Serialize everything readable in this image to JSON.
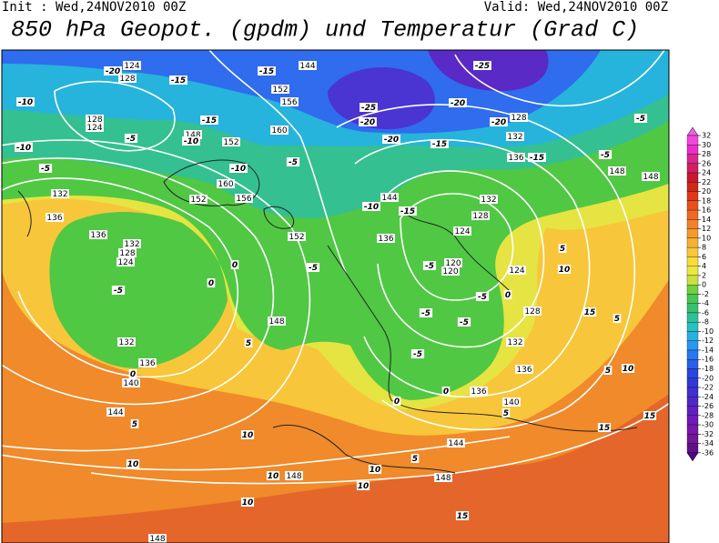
{
  "header": {
    "init": "Init : Wed,24NOV2010 00Z",
    "valid": "Valid: Wed,24NOV2010 00Z",
    "title": "850 hPa Geopot. (gpdm) und Temperatur (Grad C)"
  },
  "map": {
    "geopotential_labels": [
      144,
      152,
      156,
      128,
      124,
      148,
      152,
      160,
      160,
      152,
      156,
      132,
      136,
      136,
      132,
      128,
      124,
      152,
      148,
      136,
      132,
      140,
      144,
      144,
      136,
      132,
      128,
      124,
      120,
      120,
      124,
      128,
      132,
      136,
      140,
      136,
      144,
      148,
      148,
      148,
      148,
      128,
      132,
      136,
      148,
      124,
      128
    ],
    "temperature_labels": [
      -20,
      -15,
      -15,
      -10,
      -25,
      -25,
      -20,
      -20,
      -20,
      -20,
      -15,
      -15,
      -5,
      -5,
      -10,
      -5,
      -5,
      -10,
      -15,
      -10,
      -5,
      -10,
      -15,
      -5,
      0,
      0,
      -5,
      -5,
      -5,
      -5,
      -5,
      -5,
      0,
      5,
      10,
      15,
      5,
      5,
      5,
      0,
      0,
      5,
      10,
      10,
      10,
      10,
      10,
      15,
      15,
      15,
      10,
      10,
      5,
      0,
      5
    ]
  },
  "colorbar": {
    "ticks": [
      32,
      30,
      28,
      26,
      24,
      22,
      20,
      18,
      16,
      14,
      12,
      10,
      8,
      6,
      4,
      2,
      0,
      -2,
      -4,
      -6,
      -8,
      -10,
      -12,
      -14,
      -16,
      -18,
      -20,
      -22,
      -24,
      -26,
      -28,
      -30,
      -32,
      -34,
      -36
    ],
    "colors": [
      "#f048d8",
      "#e830c8",
      "#d82890",
      "#d02060",
      "#c81830",
      "#d02818",
      "#e03818",
      "#e85020",
      "#ee6a24",
      "#f2822a",
      "#f49a2e",
      "#f6b034",
      "#f8c83a",
      "#f8dc3e",
      "#e8e840",
      "#c8e040",
      "#70d040",
      "#48c850",
      "#38c070",
      "#30c098",
      "#28c0c0",
      "#28b0e0",
      "#2898f0",
      "#2878f0",
      "#2860e8",
      "#2848e0",
      "#3038d8",
      "#4030d0",
      "#5028c8",
      "#6020c0",
      "#7018b8",
      "#7818a8",
      "#701898",
      "#601088"
    ],
    "over_color": "#f060e0",
    "under_color": "#500880"
  }
}
